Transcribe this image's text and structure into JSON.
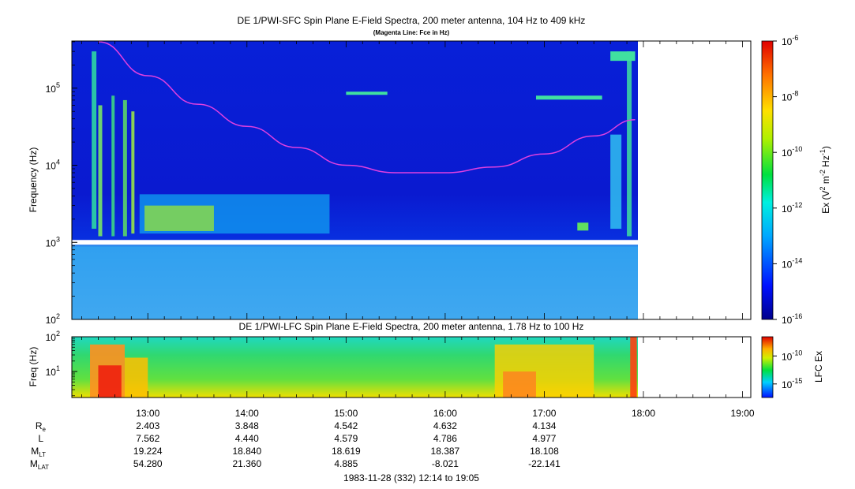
{
  "colors": {
    "background": "#ffffff",
    "sfc_fill": "#0616d6",
    "lfc_fill": "#32d872",
    "fce_line": "#e040e0",
    "gap": "#ffffff"
  },
  "ephemeris_labels": {
    "re": {
      "main": "R",
      "sub": "e"
    },
    "l": {
      "main": "L",
      "sub": ""
    },
    "mlt": {
      "main": "M",
      "sub": "LT"
    },
    "mlat": {
      "main": "M",
      "sub": "LAT"
    }
  },
  "time_axis": {
    "ticks": [
      "13:00",
      "14:00",
      "15:00",
      "16:00",
      "17:00",
      "18:00",
      "19:00"
    ],
    "caption": "1983-11-28 (332) 12:14 to 19:05"
  },
  "ephemeris": {
    "times": [
      "13:00",
      "14:00",
      "15:00",
      "16:00",
      "17:00"
    ],
    "re": [
      "2.403",
      "3.848",
      "4.542",
      "4.632",
      "4.134"
    ],
    "l": [
      "7.562",
      "4.440",
      "4.579",
      "4.786",
      "4.977"
    ],
    "mlt": [
      "19.224",
      "18.840",
      "18.619",
      "18.387",
      "18.108"
    ],
    "mlat": [
      "54.280",
      "21.360",
      "4.885",
      "-8.021",
      "-22.141"
    ]
  },
  "chart_data": [
    {
      "type": "heatmap",
      "title": "DE 1/PWI-SFC  Spin Plane E-Field Spectra, 200 meter antenna, 104 Hz to 409 kHz",
      "subtitle": "(Magenta Line: Fce in Hz)",
      "xlabel": "",
      "ylabel": "Frequency (Hz)",
      "yscale": "log",
      "ylim": [
        100,
        409000
      ],
      "xlim": [
        "12:14",
        "19:05"
      ],
      "data_end": "17:56",
      "gap_hz": 1000,
      "y_ticks": [
        {
          "v": 100,
          "e": "2"
        },
        {
          "v": 1000,
          "e": "3"
        },
        {
          "v": 10000,
          "e": "4"
        },
        {
          "v": 100000,
          "e": "5"
        }
      ],
      "colorbar": {
        "label_prefix": "Ex (V",
        "label_sup1": "2",
        "label_mid": " m",
        "label_sup2": "-2",
        "label_mid2": " Hz",
        "label_sup3": "-1",
        "label_suffix": ")",
        "scale": "log",
        "range": [
          1e-16,
          1e-06
        ],
        "ticks": [
          {
            "v": -16,
            "text": "-16"
          },
          {
            "v": -14,
            "text": "-14"
          },
          {
            "v": -12,
            "text": "-12"
          },
          {
            "v": -10,
            "text": "-10"
          },
          {
            "v": -8,
            "text": "-8"
          },
          {
            "v": -6,
            "text": "-6"
          }
        ]
      },
      "fce_series": {
        "name": "Fce",
        "x": [
          "12:30",
          "13:00",
          "13:30",
          "14:00",
          "14:30",
          "15:00",
          "15:30",
          "16:00",
          "16:30",
          "17:00",
          "17:30",
          "17:55"
        ],
        "y": [
          400000,
          145000,
          62000,
          32000,
          17000,
          10000,
          8000,
          8000,
          9500,
          14000,
          24000,
          39000
        ]
      }
    },
    {
      "type": "heatmap",
      "title": "DE 1/PWI-LFC  Spin Plane E-Field Spectra, 200 meter antenna, 1.78 Hz to 100 Hz",
      "xlabel": "",
      "ylabel": "Freq (Hz)",
      "yscale": "log",
      "ylim": [
        1.78,
        100
      ],
      "xlim": [
        "12:14",
        "19:05"
      ],
      "data_end": "17:56",
      "y_ticks": [
        {
          "v": 10,
          "e": "1"
        },
        {
          "v": 100,
          "e": "2"
        }
      ],
      "colorbar": {
        "label": "LFC Ex",
        "scale": "log",
        "ticks": [
          {
            "v": -15,
            "text": "-15"
          },
          {
            "v": -10,
            "text": "-10"
          }
        ]
      }
    }
  ]
}
